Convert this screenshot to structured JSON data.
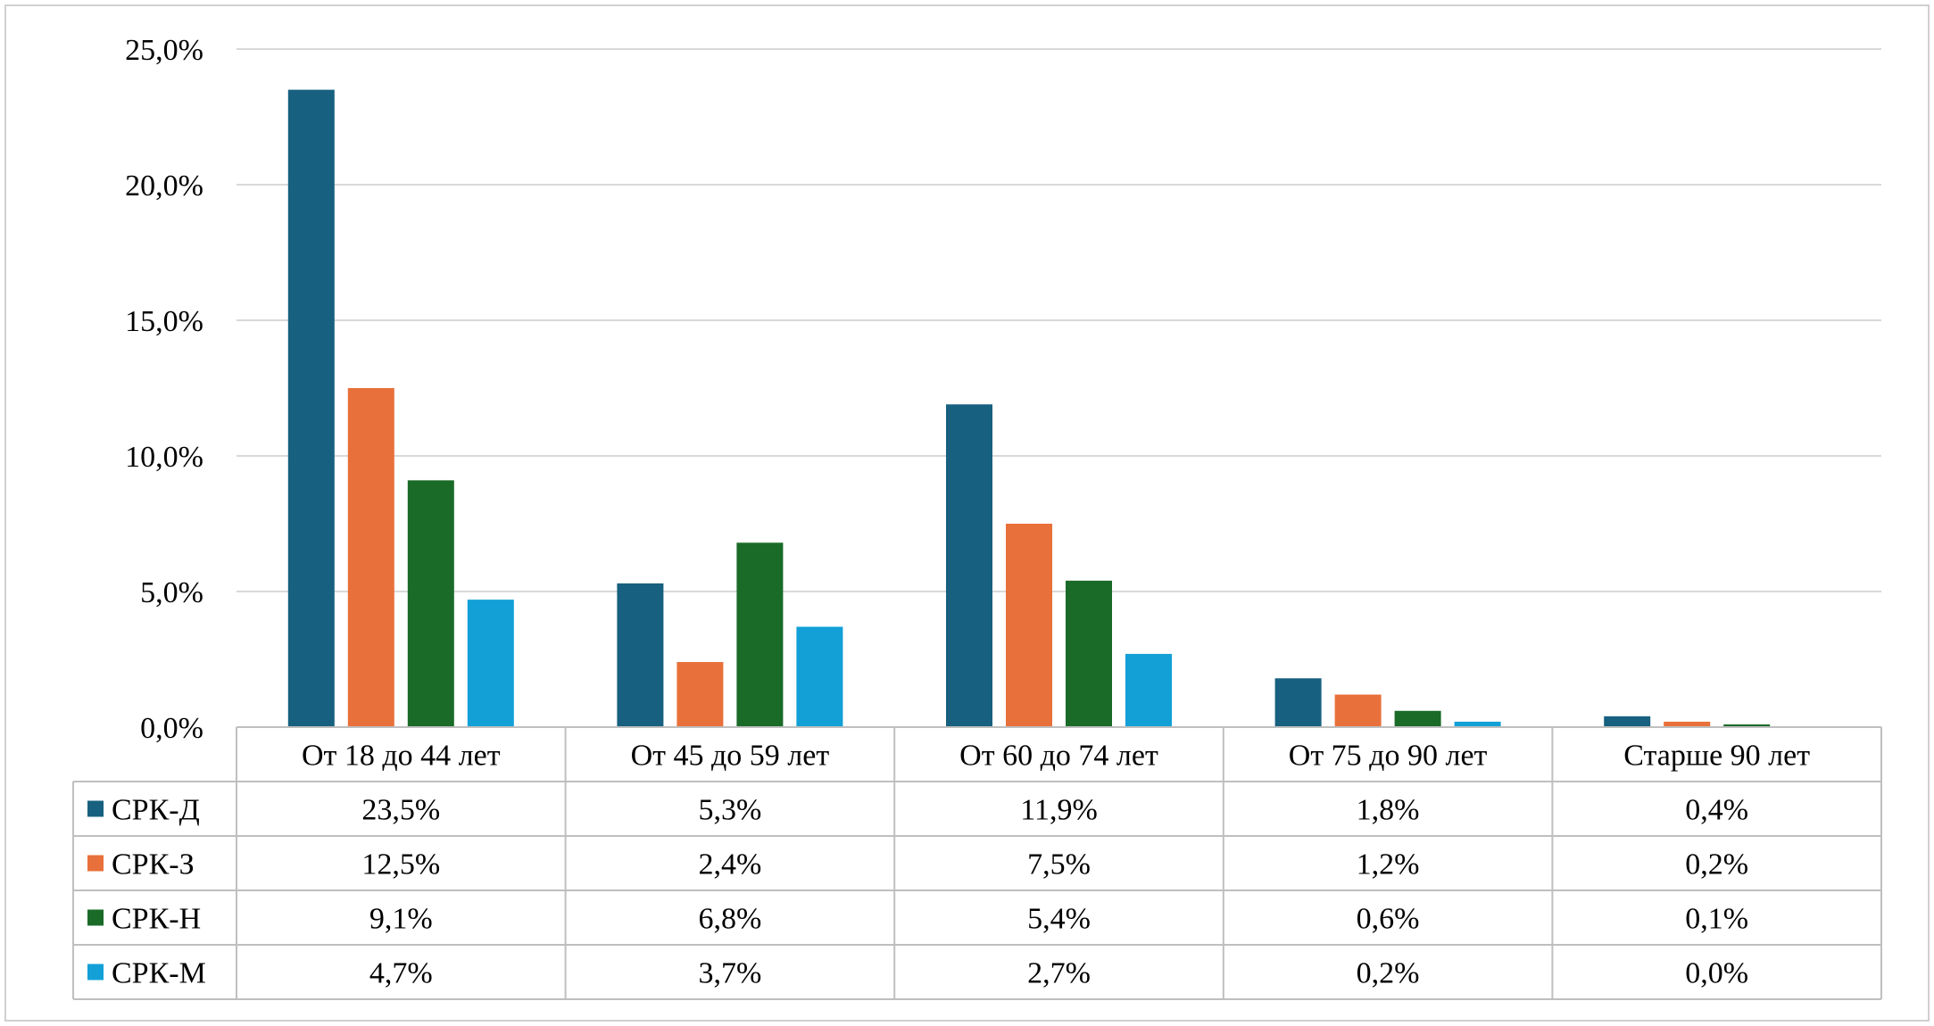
{
  "chart_data": {
    "type": "bar",
    "categories": [
      "От 18 до 44 лет",
      "От 45 до 59 лет",
      "От 60 до 74 лет",
      "От 75 до 90 лет",
      "Старше 90 лет"
    ],
    "series": [
      {
        "name": "СРК-Д",
        "color": "#17607F",
        "values": [
          23.5,
          5.3,
          11.9,
          1.8,
          0.4
        ],
        "labels": [
          "23,5%",
          "5,3%",
          "11,9%",
          "1,8%",
          "0,4%"
        ]
      },
      {
        "name": "СРК-З",
        "color": "#E8703A",
        "values": [
          12.5,
          2.4,
          7.5,
          1.2,
          0.2
        ],
        "labels": [
          "12,5%",
          "2,4%",
          "7,5%",
          "1,2%",
          "0,2%"
        ]
      },
      {
        "name": "СРК-Н",
        "color": "#1A6B28",
        "values": [
          9.1,
          6.8,
          5.4,
          0.6,
          0.1
        ],
        "labels": [
          "9,1%",
          "6,8%",
          "5,4%",
          "0,6%",
          "0,1%"
        ]
      },
      {
        "name": "СРК-М",
        "color": "#12A0D7",
        "values": [
          4.7,
          3.7,
          2.7,
          0.2,
          0.0
        ],
        "labels": [
          "4,7%",
          "3,7%",
          "2,7%",
          "0,2%",
          "0,0%"
        ]
      }
    ],
    "y_ticks": [
      0,
      5,
      10,
      15,
      20,
      25
    ],
    "y_tick_labels": [
      "0,0%",
      "5,0%",
      "10,0%",
      "15,0%",
      "20,0%",
      "25,0%"
    ],
    "ylim": [
      0,
      25
    ],
    "grid": true,
    "legend": "data-table"
  }
}
